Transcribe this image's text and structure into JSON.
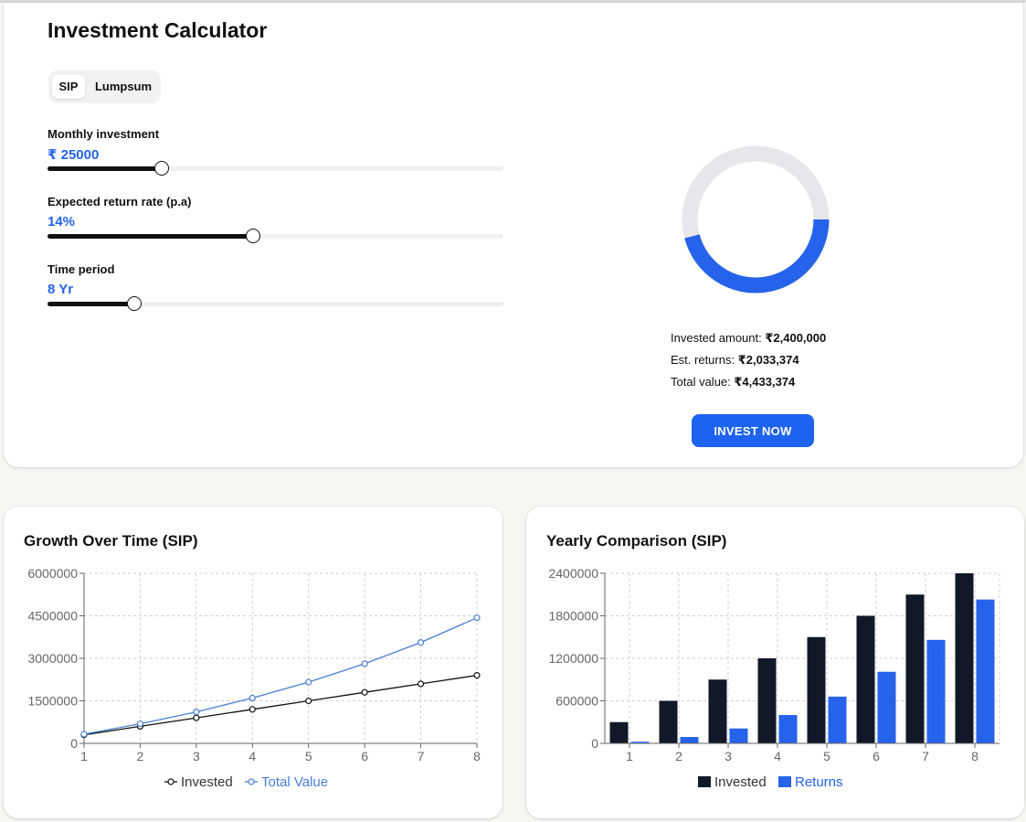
{
  "header": {
    "title": "Investment Calculator"
  },
  "mode_toggle": {
    "options": [
      "SIP",
      "Lumpsum"
    ],
    "selected": "SIP"
  },
  "fields": {
    "monthly": {
      "label": "Monthly investment",
      "value": "₹ 25000",
      "level": 0.25
    },
    "rate": {
      "label": "Expected return rate (p.a)",
      "value": "14%",
      "level": 0.45
    },
    "period": {
      "label": "Time period",
      "value": "8 Yr",
      "level": 0.19
    }
  },
  "summary": {
    "invested_label": "Invested amount:",
    "invested_value": "₹2,400,000",
    "returns_label": "Est. returns:",
    "returns_value": "₹2,033,374",
    "total_label": "Total value:",
    "total_value": "₹4,433,374"
  },
  "colors": {
    "accent": "#2563eb",
    "button": "#1d63f0",
    "dark": "#111827",
    "ring": "#e5e7eb"
  },
  "invest_button": {
    "label": "INVEST NOW"
  },
  "chart_data": [
    {
      "type": "line",
      "title": "Growth Over Time (SIP)",
      "x": [
        1,
        2,
        3,
        4,
        5,
        6,
        7,
        8
      ],
      "ylim": [
        0,
        6000000
      ],
      "yticks": [
        "0",
        "1500000",
        "3000000",
        "4500000",
        "6000000"
      ],
      "grid": true,
      "legend": "bottom",
      "series": [
        {
          "name": "Invested",
          "color": "#111111",
          "values": [
            300000,
            600000,
            900000,
            1200000,
            1500000,
            1800000,
            2100000,
            2400000
          ]
        },
        {
          "name": "Total Value",
          "color": "#4a7fd4",
          "values": [
            322500,
            690000,
            1110000,
            1600000,
            2160000,
            2810000,
            3560000,
            4430000
          ]
        }
      ]
    },
    {
      "type": "bar",
      "title": "Yearly Comparison (SIP)",
      "categories": [
        "1",
        "2",
        "3",
        "4",
        "5",
        "6",
        "7",
        "8"
      ],
      "ylim": [
        0,
        2400000
      ],
      "yticks": [
        "0",
        "600000",
        "1200000",
        "1800000",
        "2400000"
      ],
      "grid": true,
      "legend": "bottom",
      "series": [
        {
          "name": "Invested",
          "color": "#111827",
          "values": [
            300000,
            600000,
            900000,
            1200000,
            1500000,
            1800000,
            2100000,
            2400000
          ]
        },
        {
          "name": "Returns",
          "color": "#2563eb",
          "values": [
            22500,
            90000,
            210000,
            400000,
            660000,
            1010000,
            1460000,
            2030000
          ]
        }
      ]
    }
  ]
}
